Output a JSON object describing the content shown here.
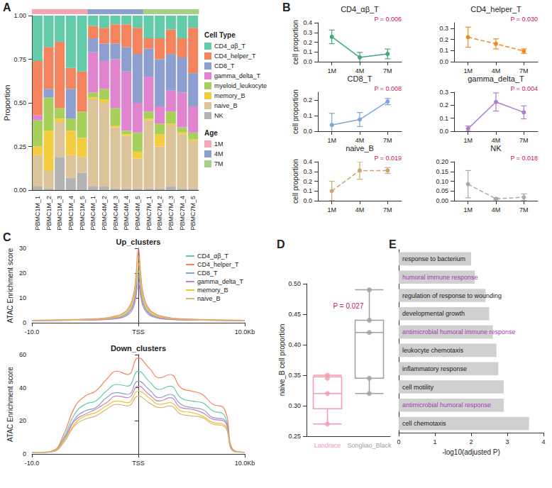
{
  "chart_data": [
    {
      "panel": "A",
      "type": "bar",
      "stacked": true,
      "ylabel": "Proportion",
      "categories": [
        "PBMC1M_1",
        "PBMC1M_2",
        "PBMC1M_3",
        "PBMC1M_4",
        "PBMC1M_5",
        "PBMC4M_1",
        "PBMC4M_2",
        "PBMC4M_3",
        "PBMC4M_4",
        "PBMC4M_5",
        "PBMC7M_1",
        "PBMC7M_2",
        "PBMC7M_3",
        "PBMC7M_4",
        "PBMC7M_5"
      ],
      "ylim": [
        0,
        1
      ],
      "yticks": [
        {
          "value": 0,
          "label": "0.00"
        },
        0.25,
        {
          "value": 0.5,
          "label": "0.50"
        },
        0.75,
        {
          "value": 1,
          "label": "1.00"
        }
      ],
      "legend": "right",
      "legend_title": "Cell Type",
      "series": [
        {
          "name": "NK",
          "color": "#b3b3b3",
          "values": [
            0.02,
            0.01,
            0.19,
            0.07,
            0.1,
            0.02,
            0.02,
            0.01,
            0.01,
            0.01,
            0.01,
            0.01,
            0.02,
            0.01,
            0.01
          ]
        },
        {
          "name": "naive_B",
          "color": "#dcc39a",
          "values": [
            0.18,
            0.1,
            0.2,
            0.13,
            0.09,
            0.5,
            0.48,
            0.35,
            0.3,
            0.17,
            0.39,
            0.24,
            0.35,
            0.31,
            0.27
          ]
        },
        {
          "name": "memory_B",
          "color": "#f4cd3f",
          "values": [
            0.05,
            0.23,
            0.02,
            0.14,
            0.11,
            0.01,
            0.02,
            0.01,
            0.01,
            0.04,
            0.01,
            0.07,
            0.01,
            0.01,
            0.01
          ]
        },
        {
          "name": "myeloid_leukocyte",
          "color": "#a6d05a",
          "values": [
            0.15,
            0.19,
            0.06,
            0.07,
            0.15,
            0.03,
            0.06,
            0.1,
            0.02,
            0.11,
            0.04,
            0.06,
            0.07,
            0.03,
            0.04
          ]
        },
        {
          "name": "gamma_delta_T",
          "color": "#e184cf",
          "values": [
            0.03,
            0,
            0,
            0,
            0,
            0.23,
            0.16,
            0.28,
            0.34,
            0.17,
            0.2,
            0.1,
            0.12,
            0.2,
            0.15
          ]
        },
        {
          "name": "CD8_T",
          "color": "#8c9fcf",
          "values": [
            0,
            0.05,
            0,
            0.17,
            0,
            0.08,
            0.1,
            0.09,
            0.14,
            0.28,
            0.16,
            0.27,
            0.21,
            0.2,
            0.19
          ]
        },
        {
          "name": "CD4_helper_T",
          "color": "#f3845e",
          "values": [
            0.31,
            0.24,
            0.38,
            0.12,
            0.23,
            0.07,
            0.09,
            0.11,
            0.13,
            0.15,
            0.06,
            0.12,
            0.14,
            0.11,
            0.26
          ]
        },
        {
          "name": "CD4_αβ_T",
          "color": "#63cba9",
          "values": [
            0.26,
            0.18,
            0.15,
            0.3,
            0.32,
            0.06,
            0.07,
            0.05,
            0.05,
            0.07,
            0.13,
            0.13,
            0.08,
            0.13,
            0.07
          ]
        }
      ],
      "groups": {
        "title": "Age",
        "names": [
          "1M",
          "4M",
          "7M"
        ],
        "colors": [
          "#f4a6b4",
          "#8da0cb",
          "#a6d08a"
        ],
        "values": [
          "1M",
          "1M",
          "1M",
          "1M",
          "1M",
          "4M",
          "4M",
          "4M",
          "4M",
          "4M",
          "7M",
          "7M",
          "7M",
          "7M",
          "7M"
        ]
      }
    },
    {
      "panel": "B",
      "type": "line",
      "title": "CD4_αβ_T",
      "ylabel": "cell proportion",
      "annotation": "P = 0.006",
      "categories": [
        "1M",
        "4M",
        "7M"
      ],
      "values": [
        0.255,
        0.045,
        0.08
      ],
      "errors": [
        0.07,
        0.05,
        0.05
      ],
      "color": "#3daa78",
      "line_style": "solid",
      "marker": "circle",
      "ylim": [
        0,
        0.4
      ],
      "yticks": [
        {
          "value": 0,
          "label": "0.0"
        },
        0.1,
        0.2,
        0.3,
        0.4
      ]
    },
    {
      "type": "line",
      "title": "CD4_helper_T",
      "annotation": "P = 0.030",
      "categories": [
        "1M",
        "4M",
        "7M"
      ],
      "values": [
        0.22,
        0.16,
        0.095
      ],
      "errors": [
        0.09,
        0.045,
        0.02
      ],
      "color": "#f08b22",
      "line_style": "dashed",
      "marker": "circle",
      "ylim": [
        0,
        0.35
      ],
      "yticks": [
        {
          "value": 0,
          "label": "0.0"
        },
        0.1,
        0.2,
        0.3
      ]
    },
    {
      "type": "line",
      "title": "CD8_T",
      "ylabel": "cell proportion",
      "annotation": "P = 0.008",
      "categories": [
        "1M",
        "4M",
        "7M"
      ],
      "values": [
        0.04,
        0.075,
        0.19
      ],
      "errors": [
        0.075,
        0.045,
        0.02
      ],
      "color": "#7ea6d8",
      "line_style": "solid",
      "marker": "circle",
      "ylim": [
        0,
        0.25
      ],
      "yticks": [
        {
          "value": 0,
          "label": "0.0"
        },
        0.1,
        0.2
      ]
    },
    {
      "type": "line",
      "title": "gamma_delta_T",
      "annotation": "P = 0.004",
      "categories": [
        "1M",
        "4M",
        "7M"
      ],
      "values": [
        0.02,
        0.225,
        0.145
      ],
      "errors": [
        0.02,
        0.07,
        0.05
      ],
      "color": "#b07cd0",
      "line_style": "solid",
      "marker": "circle",
      "ylim": [
        0,
        0.3
      ],
      "yticks": [
        {
          "value": 0,
          "label": "0.0"
        },
        0.1,
        0.2,
        0.3
      ]
    },
    {
      "type": "line",
      "title": "naive_B",
      "ylabel": "cell proportion",
      "annotation": "P = 0.019",
      "categories": [
        "1M",
        "4M",
        "7M"
      ],
      "values": [
        0.1,
        0.31,
        0.31
      ],
      "errors": [
        0.1,
        0.09,
        0.03
      ],
      "color": "#c8a873",
      "line_style": "dashed",
      "marker": "circle",
      "ylim": [
        0,
        0.4
      ],
      "yticks": [
        {
          "value": 0,
          "label": "0.0"
        },
        0.1,
        0.2,
        0.3,
        0.4
      ]
    },
    {
      "type": "line",
      "title": "NK",
      "annotation": "P = 0.018",
      "categories": [
        "1M",
        "4M",
        "7M"
      ],
      "values": [
        0.085,
        0.01,
        0.018
      ],
      "errors": [
        0.07,
        0.005,
        0.017
      ],
      "color": "#aaaaaa",
      "line_style": "dashed",
      "marker": "circle",
      "ylim": [
        0,
        0.2
      ],
      "yticks": [
        {
          "value": 0,
          "label": "0.00"
        },
        0.05,
        {
          "value": 0.1,
          "label": "0.10"
        },
        0.15,
        {
          "value": 0.2,
          "label": "0.20"
        }
      ]
    },
    {
      "panel": "C",
      "type": "line",
      "title": "Up_clusters",
      "ylabel": "ATAC Enrichment score",
      "legend": "upper right",
      "x": [
        -10,
        -8,
        -6,
        -4,
        -3,
        -2,
        -1.5,
        -1,
        -0.5,
        -0.25,
        0,
        0.25,
        0.5,
        1,
        1.5,
        2,
        3,
        4,
        6,
        8,
        10
      ],
      "xlim": [
        -10,
        10
      ],
      "xticks": [
        {
          "value": -10,
          "label": "-10.0"
        },
        {
          "value": 0,
          "label": "TSS"
        },
        {
          "value": 10,
          "label": "10.0Kb"
        }
      ],
      "ylim": [
        0,
        30
      ],
      "yticks": [
        0,
        10,
        20,
        30
      ],
      "series": [
        {
          "name": "CD4_αβ_T",
          "color": "#63cba9",
          "values": [
            0.9,
            1.0,
            1.1,
            1.3,
            1.6,
            2.1,
            2.7,
            4.0,
            7.5,
            12.8,
            21,
            13,
            7.6,
            4.1,
            2.8,
            2.1,
            1.6,
            1.3,
            1.1,
            1.0,
            0.9
          ]
        },
        {
          "name": "CD4_helper_T",
          "color": "#f3845e",
          "values": [
            1.0,
            1.1,
            1.3,
            1.6,
            2.0,
            2.8,
            3.7,
            5.5,
            10.5,
            18,
            30,
            18.5,
            10.8,
            5.6,
            3.8,
            2.8,
            2.0,
            1.6,
            1.3,
            1.1,
            1.0
          ]
        },
        {
          "name": "CD8_T",
          "color": "#8c9fcf",
          "values": [
            0.8,
            0.9,
            1.0,
            1.2,
            1.4,
            1.9,
            2.4,
            3.6,
            6.8,
            11.5,
            19,
            11.7,
            6.9,
            3.7,
            2.5,
            1.9,
            1.4,
            1.2,
            1.0,
            0.9,
            0.8
          ]
        },
        {
          "name": "gamma_delta_T",
          "color": "#c582c4",
          "values": [
            0.8,
            0.9,
            1.0,
            1.1,
            1.3,
            1.7,
            2.1,
            3.1,
            5.8,
            9.8,
            16,
            10,
            5.9,
            3.2,
            2.2,
            1.7,
            1.3,
            1.1,
            1.0,
            0.9,
            0.8
          ]
        },
        {
          "name": "memory_B",
          "color": "#f1c232",
          "values": [
            0.9,
            1.0,
            1.1,
            1.4,
            1.7,
            2.3,
            3.0,
            4.5,
            8.5,
            14.5,
            24,
            14.8,
            8.7,
            4.6,
            3.1,
            2.3,
            1.7,
            1.4,
            1.1,
            1.0,
            0.9
          ]
        },
        {
          "name": "naive_B",
          "color": "#d9b57a",
          "values": [
            1.0,
            1.1,
            1.2,
            1.5,
            1.9,
            2.6,
            3.4,
            5.0,
            9.6,
            16.5,
            27,
            16.8,
            9.8,
            5.1,
            3.5,
            2.6,
            1.9,
            1.5,
            1.2,
            1.1,
            1.0
          ]
        }
      ]
    },
    {
      "type": "line",
      "title": "Down_clusters",
      "ylabel": "ATAC Enrichment score",
      "x": [
        -10,
        -9,
        -8,
        -7,
        -6,
        -5,
        -4,
        -3,
        -2,
        -1,
        0,
        1,
        2,
        3,
        4,
        5,
        6,
        7,
        8,
        9,
        10
      ],
      "xlim": [
        -10,
        10
      ],
      "xticks": [
        {
          "value": -10,
          "label": "-10.0"
        },
        {
          "value": 0,
          "label": "TSS"
        },
        {
          "value": 10,
          "label": "10.0Kb"
        }
      ],
      "ylim": [
        0,
        60
      ],
      "yticks": [
        0,
        20,
        40,
        60
      ],
      "series": [
        {
          "name": "CD4_αβ_T",
          "color": "#63cba9",
          "values": [
            1,
            1,
            2,
            10,
            24,
            30,
            32,
            38,
            42,
            41,
            50,
            44,
            39,
            41,
            34,
            32,
            31,
            26,
            24,
            2,
            1
          ]
        },
        {
          "name": "CD4_helper_T",
          "color": "#f3845e",
          "values": [
            1,
            1,
            2,
            12,
            28,
            35,
            38,
            45,
            50,
            48,
            58,
            52,
            46,
            48,
            40,
            38,
            36,
            30,
            28,
            2,
            1
          ]
        },
        {
          "name": "CD8_T",
          "color": "#8c9fcf",
          "values": [
            1,
            1,
            1.5,
            9,
            21,
            26,
            28,
            34,
            37,
            36,
            44,
            39,
            34,
            36,
            30,
            28,
            27,
            22,
            21,
            1.5,
            1
          ]
        },
        {
          "name": "gamma_delta_T",
          "color": "#c582c4",
          "values": [
            1,
            1,
            1.5,
            8,
            20,
            24,
            27,
            31,
            35,
            34,
            41,
            36,
            32,
            34,
            28,
            27,
            25,
            21,
            20,
            1.5,
            1
          ]
        },
        {
          "name": "memory_B",
          "color": "#f1c232",
          "values": [
            1,
            1,
            1.5,
            8,
            18,
            23,
            25,
            29,
            32,
            31,
            38,
            34,
            30,
            31,
            26,
            25,
            23,
            19,
            18,
            1.5,
            1
          ]
        },
        {
          "name": "naive_B",
          "color": "#d9b57a",
          "values": [
            1,
            1,
            1.5,
            7,
            17,
            21,
            23,
            27,
            30,
            29,
            35,
            31,
            28,
            29,
            24,
            23,
            22,
            18,
            17,
            1.5,
            1
          ]
        }
      ]
    },
    {
      "panel": "D",
      "type": "boxplot",
      "ylabel": "naive_B cell proportion",
      "annotation": "P = 0.027",
      "categories": [
        "Landrace",
        "Songliao_Black"
      ],
      "colors": [
        "#f29bb0",
        "#a0a0a0"
      ],
      "boxes": [
        [
          0.27,
          0.295,
          0.32,
          0.3475,
          0.35
        ],
        [
          0.32,
          0.345,
          0.42,
          0.44,
          0.49
        ]
      ],
      "points": [
        [
          0.27,
          0.32,
          0.345,
          0.35
        ],
        [
          0.32,
          0.345,
          0.42,
          0.44,
          0.49
        ]
      ],
      "ylim": [
        0.25,
        0.5
      ],
      "yticks": [
        0.25,
        {
          "value": 0.3,
          "label": "0.30"
        },
        0.35,
        {
          "value": 0.4,
          "label": "0.40"
        },
        0.45,
        {
          "value": 0.5,
          "label": "0.50"
        }
      ]
    },
    {
      "panel": "E",
      "type": "bar",
      "orientation": "horizontal",
      "xlabel": "-log10(adjusted P)",
      "color": "#d0d0d0",
      "categories": [
        "response to bacterium",
        "humoral immune response",
        "regulation of response to wounding",
        "developmental growth",
        "antimicrobial humoral immune response",
        "leukocyte chemotaxis",
        "inflammatory response",
        "cell motility",
        "antimicrobial humoral response",
        "cell chemotaxis"
      ],
      "values": [
        2.0,
        2.1,
        2.4,
        2.5,
        2.6,
        2.7,
        2.75,
        2.9,
        2.9,
        3.6
      ],
      "label_colors": [
        "#222222",
        "#a040b0",
        "#222222",
        "#222222",
        "#a040b0",
        "#222222",
        "#222222",
        "#222222",
        "#a040b0",
        "#222222"
      ],
      "data_labels": true,
      "tick_labels": "x",
      "xlim": [
        0,
        4
      ],
      "xticks": [
        0,
        1,
        2,
        3,
        4
      ]
    }
  ]
}
